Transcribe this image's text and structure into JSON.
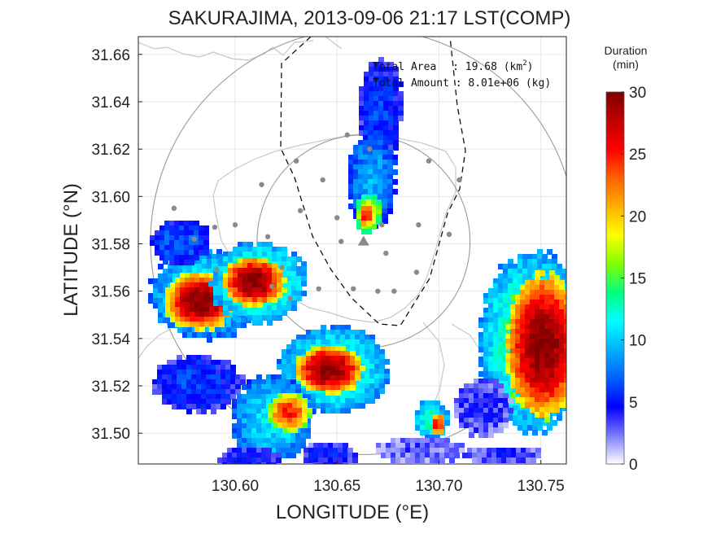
{
  "chart_data": {
    "type": "heatmap",
    "title": "SAKURAJIMA, 2013-09-06 21:17 LST(COMP)",
    "xlabel": "LONGITUDE (°E)",
    "ylabel": "LATITUDE (°N)",
    "xlim": [
      130.5525,
      130.7625
    ],
    "ylim": [
      31.487,
      31.6675
    ],
    "x_ticks": [
      130.6,
      130.65,
      130.7,
      130.75
    ],
    "x_tick_labels": [
      "130.60",
      "130.65",
      "130.70",
      "130.75"
    ],
    "y_ticks": [
      31.5,
      31.52,
      31.54,
      31.56,
      31.58,
      31.6,
      31.62,
      31.64,
      31.66
    ],
    "y_tick_labels": [
      "31.50",
      "31.52",
      "31.54",
      "31.56",
      "31.58",
      "31.60",
      "31.62",
      "31.64",
      "31.66"
    ],
    "grid": true,
    "colorbar": {
      "title_line1": "Duration",
      "title_line2": "(min)",
      "min": 0,
      "max": 30,
      "ticks": [
        0,
        5,
        10,
        15,
        20,
        25,
        30
      ],
      "tick_labels": [
        "0",
        "5",
        "10",
        "15",
        "20",
        "25",
        "30"
      ],
      "colors": [
        "#ffffff",
        "#7a7aff",
        "#0000ff",
        "#0060ff",
        "#00b0ff",
        "#00ffff",
        "#00ff80",
        "#80ff00",
        "#ffff00",
        "#ffb000",
        "#ff6000",
        "#ff0000",
        "#c00000",
        "#800000"
      ]
    },
    "annotation": {
      "area_label": "Total Area",
      "area_value": "19.68",
      "area_unit": "(km",
      "area_unit_sup": "2",
      "area_unit_close": ")",
      "amount_label": "Total Amount",
      "amount_value": "8.01e+06",
      "amount_unit": "(kg)"
    },
    "vent": {
      "lon": 130.663,
      "lat": 31.581
    },
    "range_rings_deg": [
      0.045,
      0.09
    ],
    "stations": [
      [
        130.63,
        31.615
      ],
      [
        130.655,
        31.626
      ],
      [
        130.666,
        31.62
      ],
      [
        130.695,
        31.615
      ],
      [
        130.613,
        31.605
      ],
      [
        130.643,
        31.607
      ],
      [
        130.71,
        31.607
      ],
      [
        130.57,
        31.595
      ],
      [
        130.59,
        31.587
      ],
      [
        130.632,
        31.594
      ],
      [
        130.6,
        31.588
      ],
      [
        130.65,
        31.591
      ],
      [
        130.69,
        31.588
      ],
      [
        130.58,
        31.582
      ],
      [
        130.616,
        31.583
      ],
      [
        130.652,
        31.581
      ],
      [
        130.672,
        31.588
      ],
      [
        130.705,
        31.584
      ],
      [
        130.623,
        31.57
      ],
      [
        130.674,
        31.576
      ],
      [
        130.689,
        31.568
      ],
      [
        130.618,
        31.562
      ],
      [
        130.641,
        31.561
      ],
      [
        130.658,
        31.561
      ],
      [
        130.67,
        31.56
      ],
      [
        130.678,
        31.56
      ],
      [
        130.591,
        31.569
      ],
      [
        130.627,
        31.557
      ]
    ],
    "plume_cells": [
      {
        "lon": 130.67,
        "lat": 31.638,
        "rx": 0.01,
        "ry": 0.023,
        "value": 6
      },
      {
        "lon": 130.666,
        "lat": 31.608,
        "rx": 0.011,
        "ry": 0.022,
        "value": 9
      },
      {
        "lon": 130.664,
        "lat": 31.594,
        "rx": 0.006,
        "ry": 0.009,
        "value": 20
      },
      {
        "lon": 130.663,
        "lat": 31.593,
        "rx": 0.003,
        "ry": 0.005,
        "value": 27
      },
      {
        "lon": 130.584,
        "lat": 31.56,
        "rx": 0.025,
        "ry": 0.02,
        "value": 12
      },
      {
        "lon": 130.582,
        "lat": 31.557,
        "rx": 0.016,
        "ry": 0.013,
        "value": 30
      },
      {
        "lon": 130.61,
        "lat": 31.565,
        "rx": 0.022,
        "ry": 0.018,
        "value": 14
      },
      {
        "lon": 130.608,
        "lat": 31.565,
        "rx": 0.014,
        "ry": 0.011,
        "value": 30
      },
      {
        "lon": 130.647,
        "lat": 31.528,
        "rx": 0.025,
        "ry": 0.02,
        "value": 13
      },
      {
        "lon": 130.645,
        "lat": 31.528,
        "rx": 0.015,
        "ry": 0.011,
        "value": 30
      },
      {
        "lon": 130.58,
        "lat": 31.522,
        "rx": 0.02,
        "ry": 0.013,
        "value": 6
      },
      {
        "lon": 130.617,
        "lat": 31.507,
        "rx": 0.018,
        "ry": 0.02,
        "value": 11
      },
      {
        "lon": 130.625,
        "lat": 31.51,
        "rx": 0.01,
        "ry": 0.009,
        "value": 25
      },
      {
        "lon": 130.572,
        "lat": 31.582,
        "rx": 0.014,
        "ry": 0.01,
        "value": 7
      },
      {
        "lon": 130.745,
        "lat": 31.54,
        "rx": 0.024,
        "ry": 0.04,
        "value": 14
      },
      {
        "lon": 130.75,
        "lat": 31.538,
        "rx": 0.017,
        "ry": 0.033,
        "value": 30
      },
      {
        "lon": 130.695,
        "lat": 31.507,
        "rx": 0.008,
        "ry": 0.009,
        "value": 13
      },
      {
        "lon": 130.698,
        "lat": 31.505,
        "rx": 0.003,
        "ry": 0.005,
        "value": 26
      },
      {
        "lon": 130.72,
        "lat": 31.512,
        "rx": 0.013,
        "ry": 0.013,
        "value": 4
      },
      {
        "lon": 130.69,
        "lat": 31.494,
        "rx": 0.02,
        "ry": 0.006,
        "value": 3
      },
      {
        "lon": 130.73,
        "lat": 31.492,
        "rx": 0.018,
        "ry": 0.004,
        "value": 4
      },
      {
        "lon": 130.605,
        "lat": 31.49,
        "rx": 0.014,
        "ry": 0.006,
        "value": 5
      },
      {
        "lon": 130.645,
        "lat": 31.492,
        "rx": 0.012,
        "ry": 0.006,
        "value": 5
      }
    ]
  }
}
